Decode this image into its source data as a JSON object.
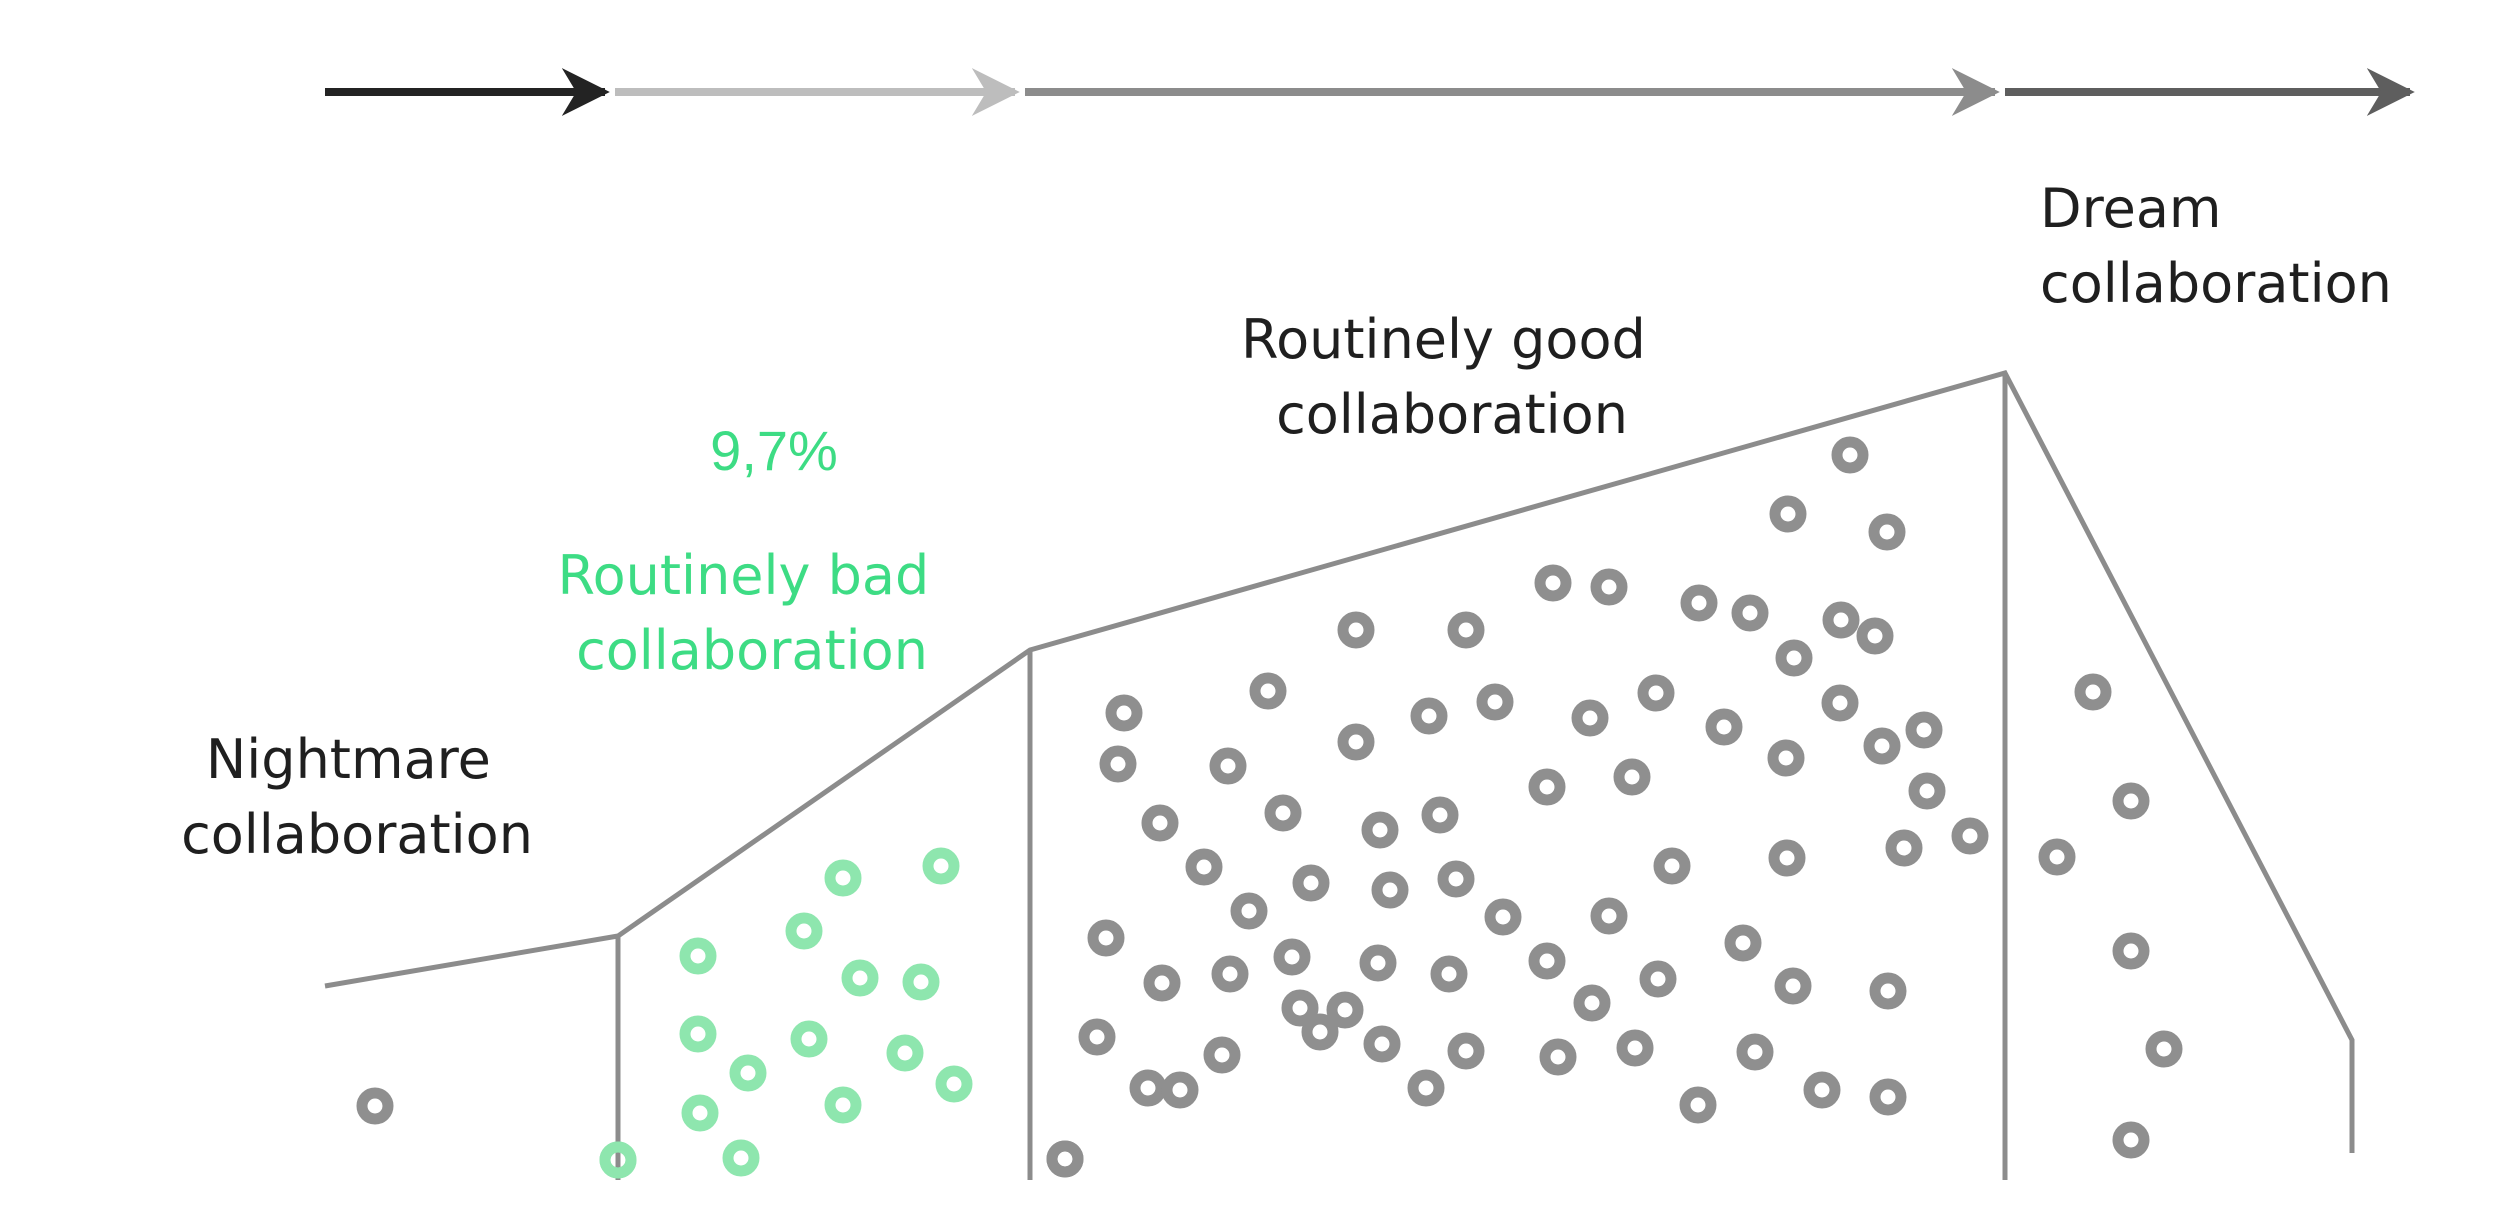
{
  "diagram": {
    "colors": {
      "arrow_black": "#232323",
      "arrow_light": "#bdbdbd",
      "arrow_mid": "#8c8c8c",
      "arrow_dark": "#5e5e5e",
      "outline": "#8c8c8c",
      "dot_gray": "#8f8f8f",
      "dot_green": "#8ee6ae",
      "highlight_green": "#3ddc84"
    },
    "arrow_segments": [
      {
        "name": "nightmare",
        "color_key": "arrow_black"
      },
      {
        "name": "bad",
        "color_key": "arrow_light"
      },
      {
        "name": "good",
        "color_key": "arrow_mid"
      },
      {
        "name": "dream",
        "color_key": "arrow_dark"
      }
    ],
    "categories": [
      {
        "key": "nightmare",
        "lines": [
          "Nightmare",
          "collaboration"
        ],
        "dot_count": 1,
        "highlight": false
      },
      {
        "key": "bad",
        "lines": [
          "Routinely bad",
          "collaboration"
        ],
        "dot_count": 16,
        "highlight": true,
        "percent": "9,7%"
      },
      {
        "key": "good",
        "lines": [
          "Routinely good",
          "collaboration"
        ],
        "dot_count": 103,
        "highlight": false
      },
      {
        "key": "dream",
        "lines": [
          "Dream",
          "collaboration"
        ],
        "dot_count": 6,
        "highlight": false
      }
    ]
  }
}
